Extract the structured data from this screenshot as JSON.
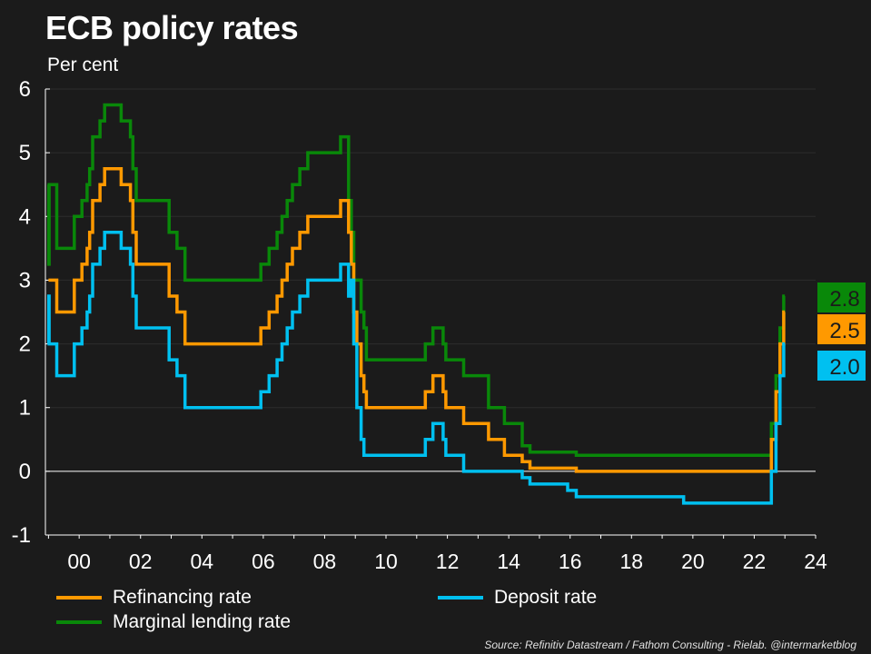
{
  "title": "ECB policy rates",
  "subtitle": "Per cent",
  "source": "Source: Refinitiv Datastream / Fathom Consulting  - Rielab. @intermarketblog",
  "colors": {
    "background": "#1b1b1b",
    "refinancing": "#ff9900",
    "deposit": "#00c0f0",
    "marginal": "#098809"
  },
  "legend": {
    "refinancing": "Refinancing rate",
    "deposit": "Deposit rate",
    "marginal": "Marginal lending rate"
  },
  "end_labels": {
    "marginal": "2.8",
    "refinancing": "2.5",
    "deposit": "2.0"
  },
  "chart_data": {
    "type": "line",
    "title": "ECB policy rates",
    "ylabel": "Per cent",
    "ylim": [
      -1,
      6
    ],
    "xlim": [
      1998.9,
      2024
    ],
    "yticks": [
      "-1",
      "0",
      "1",
      "2",
      "3",
      "4",
      "5",
      "6"
    ],
    "xticks": [
      {
        "value": 2000,
        "label": "00"
      },
      {
        "value": 2002,
        "label": "02"
      },
      {
        "value": 2004,
        "label": "04"
      },
      {
        "value": 2006,
        "label": "06"
      },
      {
        "value": 2008,
        "label": "08"
      },
      {
        "value": 2010,
        "label": "10"
      },
      {
        "value": 2012,
        "label": "12"
      },
      {
        "value": 2014,
        "label": "14"
      },
      {
        "value": 2016,
        "label": "16"
      },
      {
        "value": 2018,
        "label": "18"
      },
      {
        "value": 2020,
        "label": "20"
      },
      {
        "value": 2022,
        "label": "22"
      },
      {
        "value": 2024,
        "label": "24"
      }
    ],
    "grid": true,
    "legend_position": "bottom",
    "series": [
      {
        "name": "Refinancing rate",
        "color": "#ff9900",
        "points": [
          [
            1999.0,
            3.0
          ],
          [
            1999.27,
            2.5
          ],
          [
            1999.84,
            3.0
          ],
          [
            2000.09,
            3.25
          ],
          [
            2000.26,
            3.5
          ],
          [
            2000.34,
            3.75
          ],
          [
            2000.44,
            4.25
          ],
          [
            2000.68,
            4.5
          ],
          [
            2000.83,
            4.75
          ],
          [
            2001.37,
            4.5
          ],
          [
            2001.67,
            4.25
          ],
          [
            2001.75,
            3.75
          ],
          [
            2001.86,
            3.25
          ],
          [
            2002.93,
            2.75
          ],
          [
            2003.19,
            2.5
          ],
          [
            2003.45,
            2.0
          ],
          [
            2005.92,
            2.25
          ],
          [
            2006.19,
            2.5
          ],
          [
            2006.45,
            2.75
          ],
          [
            2006.61,
            3.0
          ],
          [
            2006.78,
            3.25
          ],
          [
            2006.95,
            3.5
          ],
          [
            2007.19,
            3.75
          ],
          [
            2007.45,
            4.0
          ],
          [
            2008.52,
            4.25
          ],
          [
            2008.78,
            3.75
          ],
          [
            2008.87,
            3.25
          ],
          [
            2008.95,
            2.5
          ],
          [
            2009.05,
            2.0
          ],
          [
            2009.19,
            1.5
          ],
          [
            2009.28,
            1.25
          ],
          [
            2009.36,
            1.0
          ],
          [
            2011.28,
            1.25
          ],
          [
            2011.53,
            1.5
          ],
          [
            2011.86,
            1.25
          ],
          [
            2011.95,
            1.0
          ],
          [
            2012.53,
            0.75
          ],
          [
            2013.34,
            0.5
          ],
          [
            2013.86,
            0.25
          ],
          [
            2014.44,
            0.15
          ],
          [
            2014.69,
            0.05
          ],
          [
            2016.2,
            0.0
          ],
          [
            2022.56,
            0.5
          ],
          [
            2022.71,
            1.25
          ],
          [
            2022.84,
            2.0
          ],
          [
            2022.96,
            2.5
          ],
          [
            2023.0,
            2.5
          ]
        ]
      },
      {
        "name": "Marginal lending rate",
        "color": "#098809",
        "points": [
          [
            1999.0,
            4.5
          ],
          [
            1999.01,
            3.25
          ],
          [
            1999.02,
            4.5
          ],
          [
            1999.27,
            3.5
          ],
          [
            1999.84,
            4.0
          ],
          [
            2000.09,
            4.25
          ],
          [
            2000.26,
            4.5
          ],
          [
            2000.34,
            4.75
          ],
          [
            2000.44,
            5.25
          ],
          [
            2000.68,
            5.5
          ],
          [
            2000.83,
            5.75
          ],
          [
            2001.37,
            5.5
          ],
          [
            2001.67,
            5.25
          ],
          [
            2001.75,
            4.75
          ],
          [
            2001.86,
            4.25
          ],
          [
            2002.93,
            3.75
          ],
          [
            2003.19,
            3.5
          ],
          [
            2003.45,
            3.0
          ],
          [
            2005.92,
            3.25
          ],
          [
            2006.19,
            3.5
          ],
          [
            2006.45,
            3.75
          ],
          [
            2006.61,
            4.0
          ],
          [
            2006.78,
            4.25
          ],
          [
            2006.95,
            4.5
          ],
          [
            2007.19,
            4.75
          ],
          [
            2007.45,
            5.0
          ],
          [
            2008.52,
            5.25
          ],
          [
            2008.78,
            4.25
          ],
          [
            2008.87,
            3.75
          ],
          [
            2008.95,
            3.0
          ],
          [
            2009.05,
            3.0
          ],
          [
            2009.19,
            2.5
          ],
          [
            2009.28,
            2.25
          ],
          [
            2009.36,
            1.75
          ],
          [
            2011.28,
            2.0
          ],
          [
            2011.53,
            2.25
          ],
          [
            2011.86,
            2.0
          ],
          [
            2011.95,
            1.75
          ],
          [
            2012.53,
            1.5
          ],
          [
            2013.34,
            1.0
          ],
          [
            2013.86,
            0.75
          ],
          [
            2014.44,
            0.4
          ],
          [
            2014.69,
            0.3
          ],
          [
            2016.2,
            0.25
          ],
          [
            2022.56,
            0.75
          ],
          [
            2022.71,
            1.5
          ],
          [
            2022.84,
            2.25
          ],
          [
            2022.96,
            2.75
          ],
          [
            2023.0,
            2.75
          ]
        ]
      },
      {
        "name": "Deposit rate",
        "color": "#00c0f0",
        "points": [
          [
            1999.0,
            2.0
          ],
          [
            1999.01,
            2.75
          ],
          [
            1999.02,
            2.0
          ],
          [
            1999.27,
            1.5
          ],
          [
            1999.84,
            2.0
          ],
          [
            2000.09,
            2.25
          ],
          [
            2000.26,
            2.5
          ],
          [
            2000.34,
            2.75
          ],
          [
            2000.44,
            3.25
          ],
          [
            2000.68,
            3.5
          ],
          [
            2000.83,
            3.75
          ],
          [
            2001.37,
            3.5
          ],
          [
            2001.67,
            3.25
          ],
          [
            2001.75,
            2.75
          ],
          [
            2001.86,
            2.25
          ],
          [
            2002.93,
            1.75
          ],
          [
            2003.19,
            1.5
          ],
          [
            2003.45,
            1.0
          ],
          [
            2005.92,
            1.25
          ],
          [
            2006.19,
            1.5
          ],
          [
            2006.45,
            1.75
          ],
          [
            2006.61,
            2.0
          ],
          [
            2006.78,
            2.25
          ],
          [
            2006.95,
            2.5
          ],
          [
            2007.19,
            2.75
          ],
          [
            2007.45,
            3.0
          ],
          [
            2008.52,
            3.25
          ],
          [
            2008.78,
            2.75
          ],
          [
            2008.87,
            3.0
          ],
          [
            2008.95,
            2.0
          ],
          [
            2009.05,
            1.0
          ],
          [
            2009.19,
            0.5
          ],
          [
            2009.28,
            0.25
          ],
          [
            2011.28,
            0.5
          ],
          [
            2011.53,
            0.75
          ],
          [
            2011.86,
            0.5
          ],
          [
            2011.95,
            0.25
          ],
          [
            2012.53,
            0.0
          ],
          [
            2014.44,
            -0.1
          ],
          [
            2014.69,
            -0.2
          ],
          [
            2015.92,
            -0.3
          ],
          [
            2016.2,
            -0.4
          ],
          [
            2019.7,
            -0.5
          ],
          [
            2022.56,
            0.0
          ],
          [
            2022.71,
            0.75
          ],
          [
            2022.84,
            1.5
          ],
          [
            2022.96,
            2.0
          ],
          [
            2023.0,
            2.0
          ]
        ]
      }
    ]
  }
}
